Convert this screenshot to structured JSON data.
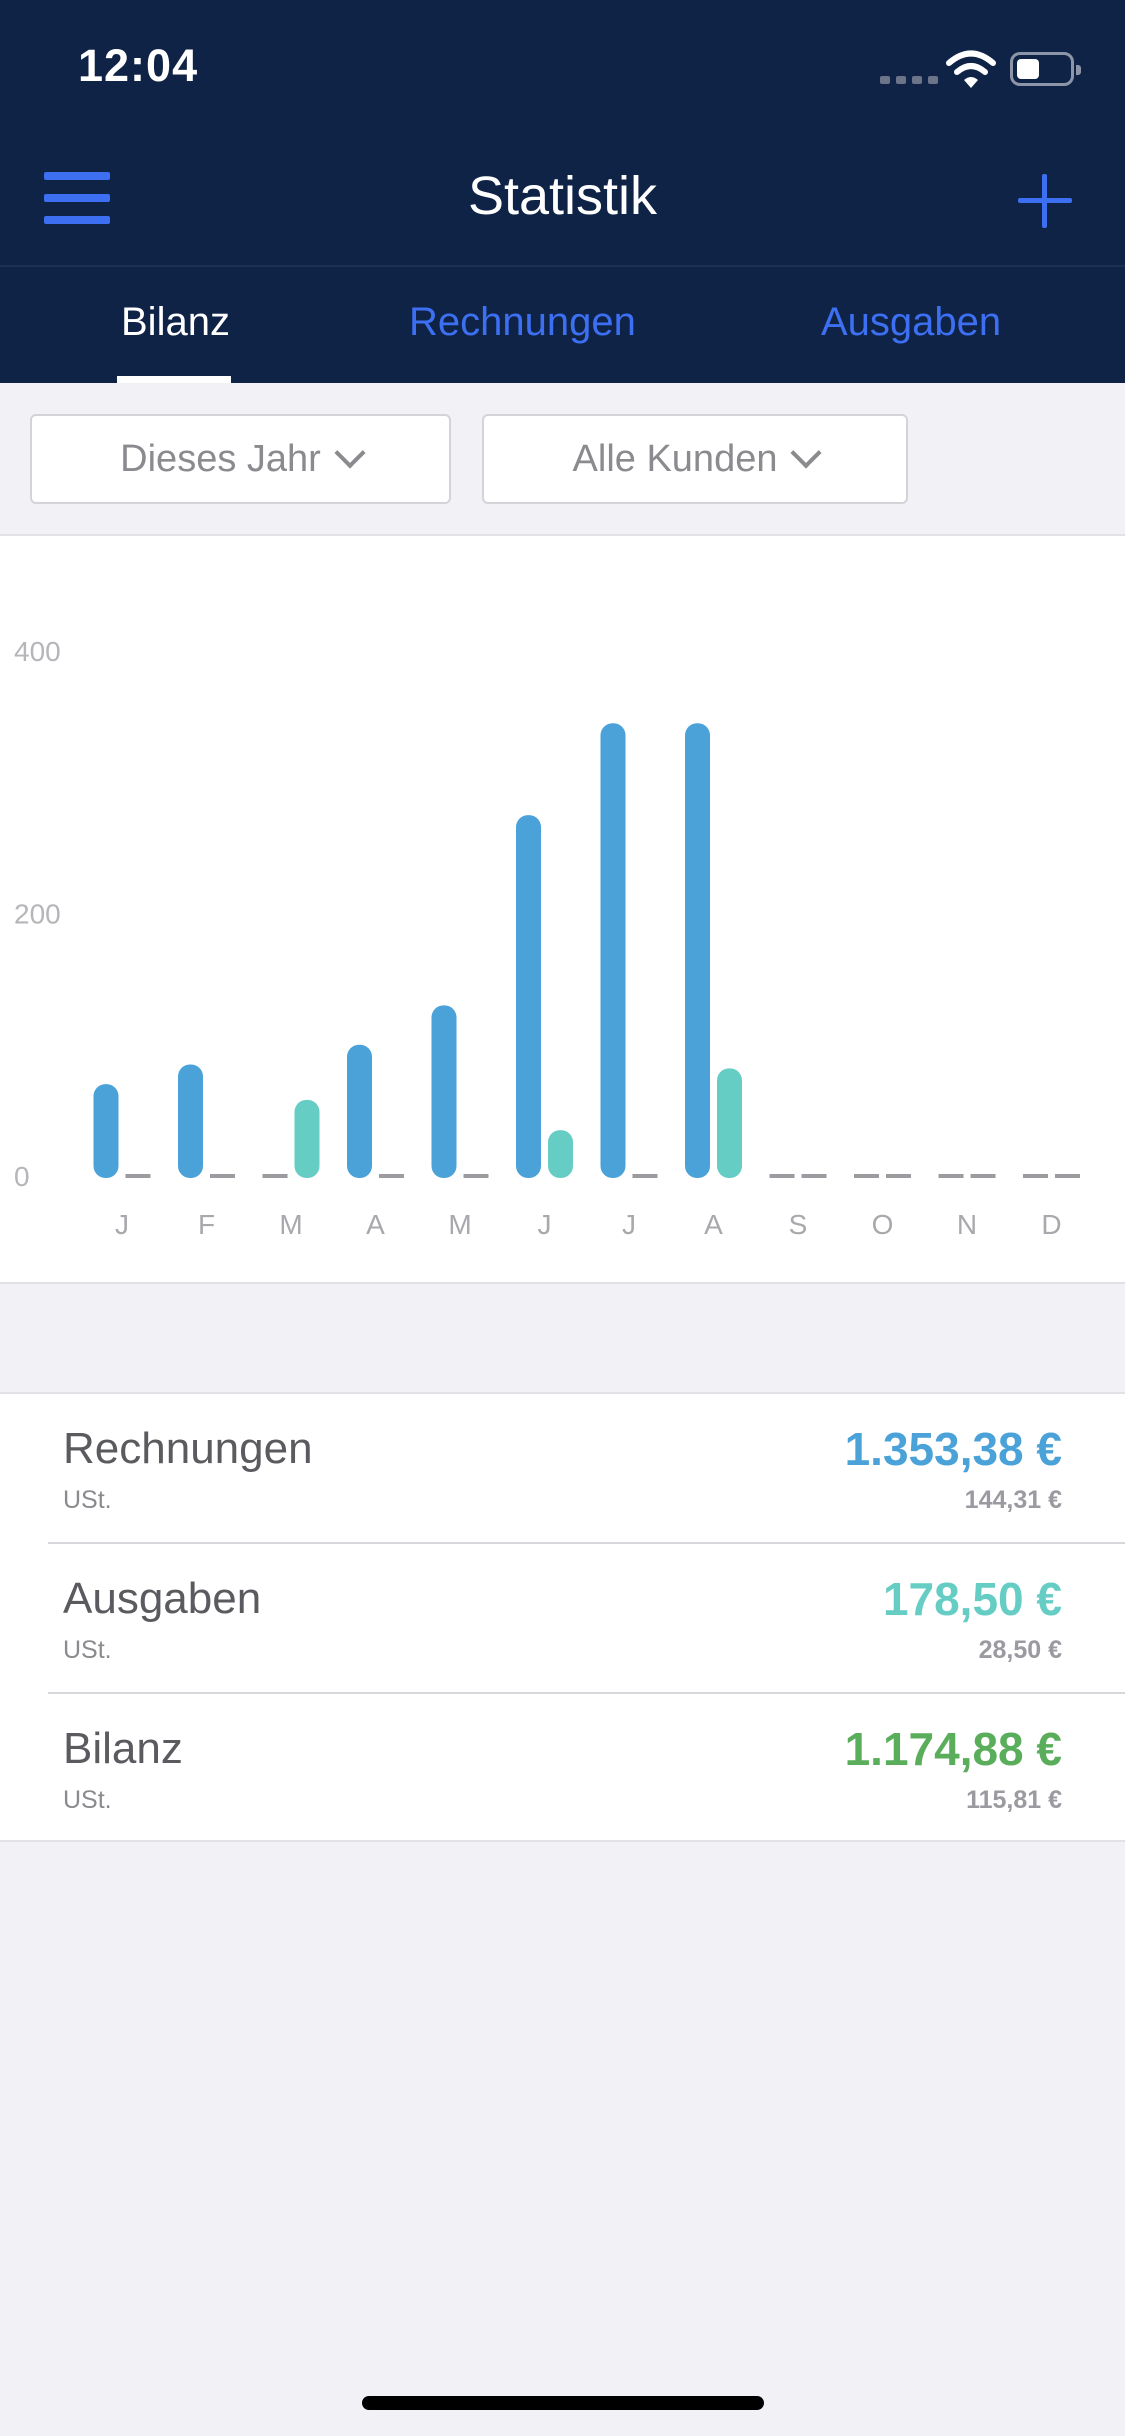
{
  "status_bar": {
    "time": "12:04"
  },
  "header": {
    "title": "Statistik"
  },
  "tabs": [
    {
      "label": "Bilanz",
      "active": true
    },
    {
      "label": "Rechnungen",
      "active": false
    },
    {
      "label": "Ausgaben",
      "active": false
    }
  ],
  "filters": {
    "period": "Dieses Jahr",
    "customer": "Alle Kunden"
  },
  "colors": {
    "income": "#4aa2d8",
    "expense": "#66cdc5",
    "balance": "#5aae5b",
    "nav_bg": "#0f2346",
    "accent": "#3d6ff2"
  },
  "chart_data": {
    "type": "bar",
    "categories": [
      "J",
      "F",
      "M",
      "A",
      "M",
      "J",
      "J",
      "A",
      "S",
      "O",
      "N",
      "D"
    ],
    "series": [
      {
        "values": [
          70,
          85,
          0,
          100,
          130,
          275,
          345,
          345,
          0,
          0,
          0,
          0
        ]
      },
      {
        "values": [
          0,
          0,
          58,
          0,
          0,
          35,
          0,
          82,
          0,
          0,
          0,
          0
        ]
      }
    ],
    "yticks": [
      "0",
      "200",
      "400"
    ],
    "ylim": [
      0,
      400
    ],
    "grid": false
  },
  "summary": [
    {
      "label": "Rechnungen",
      "sub": "USt.",
      "value": "1.353,38 €",
      "subvalue": "144,31 €",
      "color": "#4aa2d8"
    },
    {
      "label": "Ausgaben",
      "sub": "USt.",
      "value": "178,50 €",
      "subvalue": "28,50 €",
      "color": "#66cdc5"
    },
    {
      "label": "Bilanz",
      "sub": "USt.",
      "value": "1.174,88 €",
      "subvalue": "115,81 €",
      "color": "#5aae5b"
    }
  ]
}
